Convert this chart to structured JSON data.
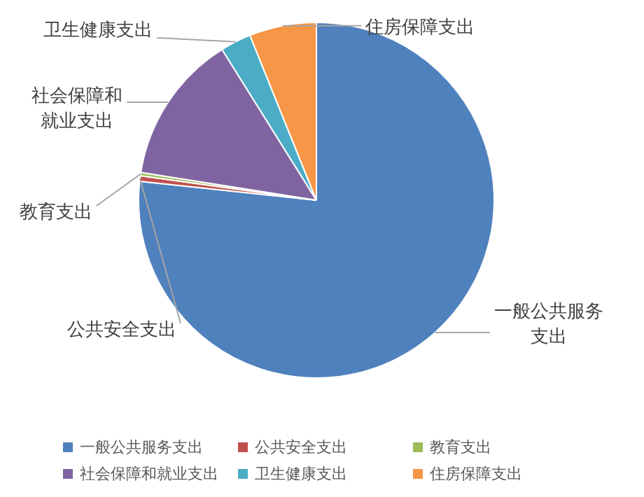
{
  "chart_data": {
    "type": "pie",
    "categories": [
      "一般公共服务支出",
      "公共安全支出",
      "教育支出",
      "社会保障和就业支出",
      "卫生健康支出",
      "住房保障支出"
    ],
    "values": [
      76.7,
      0.5,
      0.3,
      13.6,
      2.8,
      6.1
    ],
    "colors": [
      "#4f81bd",
      "#c0504d",
      "#9bbb59",
      "#8064a2",
      "#4bacc6",
      "#f79646"
    ],
    "legend": "bottom"
  }
}
